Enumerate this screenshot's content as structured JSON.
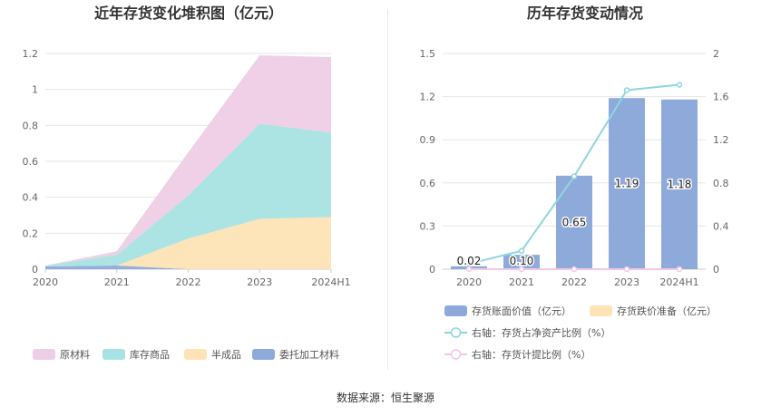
{
  "chart_data": [
    {
      "type": "area",
      "title": "近年存货变化堆积图（亿元）",
      "categories": [
        "2020",
        "2021",
        "2022",
        "2023",
        "2024H1"
      ],
      "ylim": [
        0,
        1.2
      ],
      "yticks": [
        "0",
        "0.2",
        "0.4",
        "0.6",
        "0.8",
        "1",
        "1.2"
      ],
      "stacked": true,
      "grid": true,
      "legend_position": "bottom",
      "series": [
        {
          "name": "委托加工材料",
          "color": "#8eaadb",
          "values": [
            0.015,
            0.02,
            0.0,
            0.0,
            0.0
          ]
        },
        {
          "name": "半成品",
          "color": "#fde3b5",
          "values": [
            0.0,
            0.0,
            0.17,
            0.28,
            0.29
          ]
        },
        {
          "name": "库存商品",
          "color": "#a8e3e3",
          "values": [
            0.005,
            0.06,
            0.24,
            0.53,
            0.47
          ]
        },
        {
          "name": "原材料",
          "color": "#eecde6",
          "values": [
            0.0,
            0.02,
            0.24,
            0.38,
            0.42
          ]
        }
      ],
      "legend_order": [
        "原材料",
        "库存商品",
        "半成品",
        "委托加工材料"
      ]
    },
    {
      "type": "bar",
      "title": "历年存货变动情况",
      "categories": [
        "2020",
        "2021",
        "2022",
        "2023",
        "2024H1"
      ],
      "ylim_left": [
        0,
        1.5
      ],
      "yticks_left": [
        "0",
        "0.3",
        "0.6",
        "0.9",
        "1.2",
        "1.5"
      ],
      "ylim_right": [
        0,
        2
      ],
      "yticks_right": [
        "0",
        "0.4",
        "0.8",
        "1.2",
        "1.6",
        "2"
      ],
      "grid": true,
      "legend_position": "bottom",
      "series": [
        {
          "name": "存货账面价值（亿元）",
          "kind": "bar",
          "axis": "left",
          "color": "#8eaadb",
          "values": [
            0.02,
            0.1,
            0.65,
            1.19,
            1.18
          ],
          "labels": [
            "0.02",
            "0.10",
            "0.65",
            "1.19",
            "1.18"
          ]
        },
        {
          "name": "存货跌价准备（亿元）",
          "kind": "bar",
          "axis": "left",
          "color": "#fde3b5",
          "values": [
            0,
            0,
            0,
            0,
            0
          ]
        },
        {
          "name": "右轴：存货占净资产比例（%）",
          "kind": "line",
          "axis": "right",
          "color": "#8ed6dc",
          "values": [
            0.05,
            0.17,
            0.86,
            1.66,
            1.71
          ]
        },
        {
          "name": "右轴：存货计提比例（%）",
          "kind": "line",
          "axis": "right",
          "color": "#f0c8e4",
          "values": [
            0,
            0,
            0,
            0,
            0
          ]
        }
      ]
    }
  ],
  "source": "数据来源：恒生聚源"
}
